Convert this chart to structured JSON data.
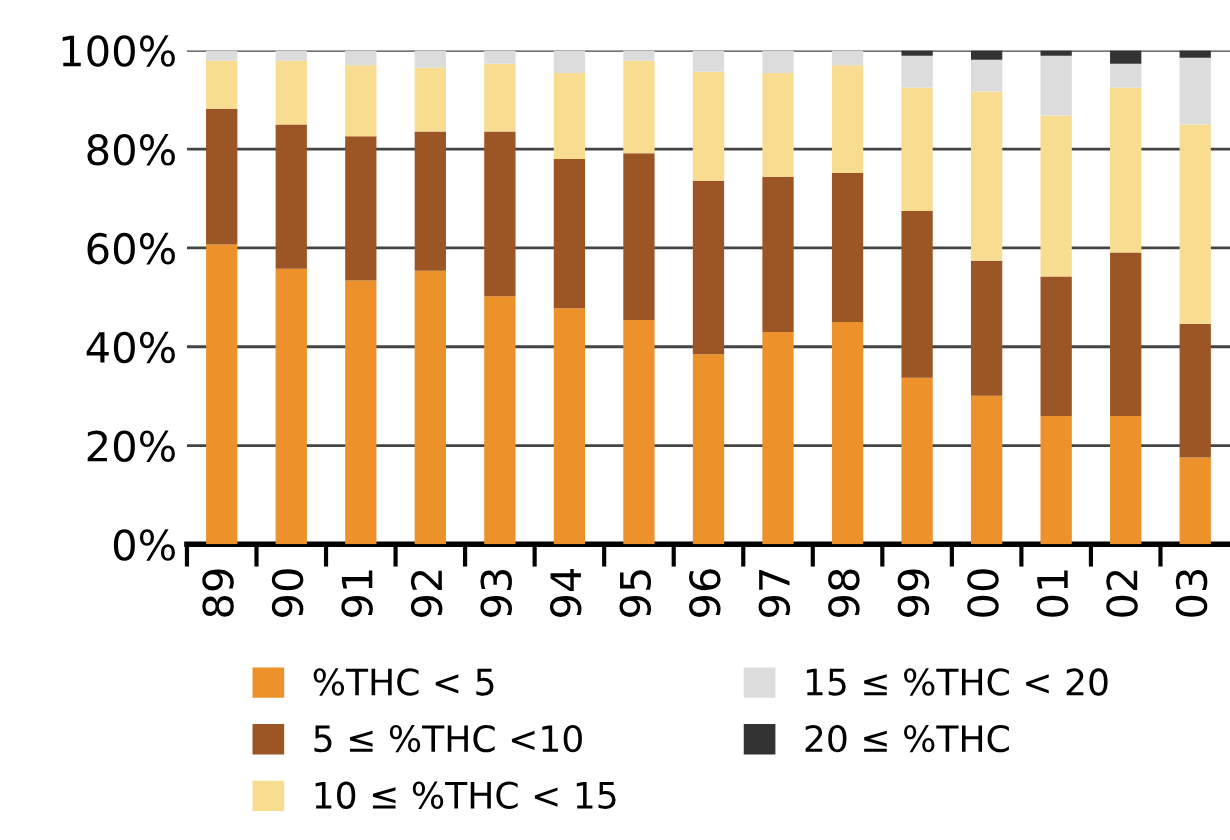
{
  "chart_data": {
    "type": "bar",
    "stacked": true,
    "categories": [
      "89",
      "90",
      "91",
      "92",
      "93",
      "94",
      "95",
      "96",
      "97",
      "98",
      "99",
      "00",
      "01",
      "02",
      "03"
    ],
    "series": [
      {
        "name": "%THC < 5",
        "color": "#ed912b",
        "values": [
          60.7,
          55.8,
          53.4,
          55.4,
          50.2,
          47.8,
          45.4,
          38.5,
          43.0,
          45.0,
          33.7,
          30.1,
          26.0,
          26.0,
          17.6
        ]
      },
      {
        "name": "5 ≤ %THC <10",
        "color": "#9c5524",
        "values": [
          27.5,
          29.2,
          29.2,
          28.2,
          33.4,
          30.2,
          33.8,
          35.1,
          31.4,
          30.2,
          33.8,
          27.3,
          28.2,
          33.1,
          27.0
        ]
      },
      {
        "name": "10 ≤ %THC < 15",
        "color": "#f8dc90",
        "values": [
          9.7,
          12.9,
          14.4,
          12.9,
          13.7,
          17.4,
          18.7,
          22.1,
          21.0,
          21.8,
          25.0,
          34.3,
          32.6,
          33.4,
          40.4
        ]
      },
      {
        "name": "15 ≤ %THC < 20",
        "color": "#dcdcdc",
        "values": [
          2.1,
          2.1,
          3.0,
          3.5,
          2.7,
          4.6,
          2.1,
          4.3,
          4.6,
          3.0,
          6.4,
          6.4,
          12.1,
          4.8,
          13.5
        ]
      },
      {
        "name": "20 ≤ %THC",
        "color": "#333333",
        "values": [
          0,
          0,
          0,
          0,
          0,
          0,
          0,
          0,
          0,
          0,
          1.1,
          1.9,
          1.1,
          2.7,
          1.5
        ]
      }
    ],
    "ylim": [
      0,
      100
    ],
    "yticks": [
      {
        "value": 0,
        "label": "0%"
      },
      {
        "value": 20,
        "label": "20%"
      },
      {
        "value": 40,
        "label": "40%"
      },
      {
        "value": 60,
        "label": "60%"
      },
      {
        "value": 80,
        "label": "80%"
      },
      {
        "value": 100,
        "label": "100%"
      }
    ],
    "grid": "y",
    "legend": "bottom"
  }
}
